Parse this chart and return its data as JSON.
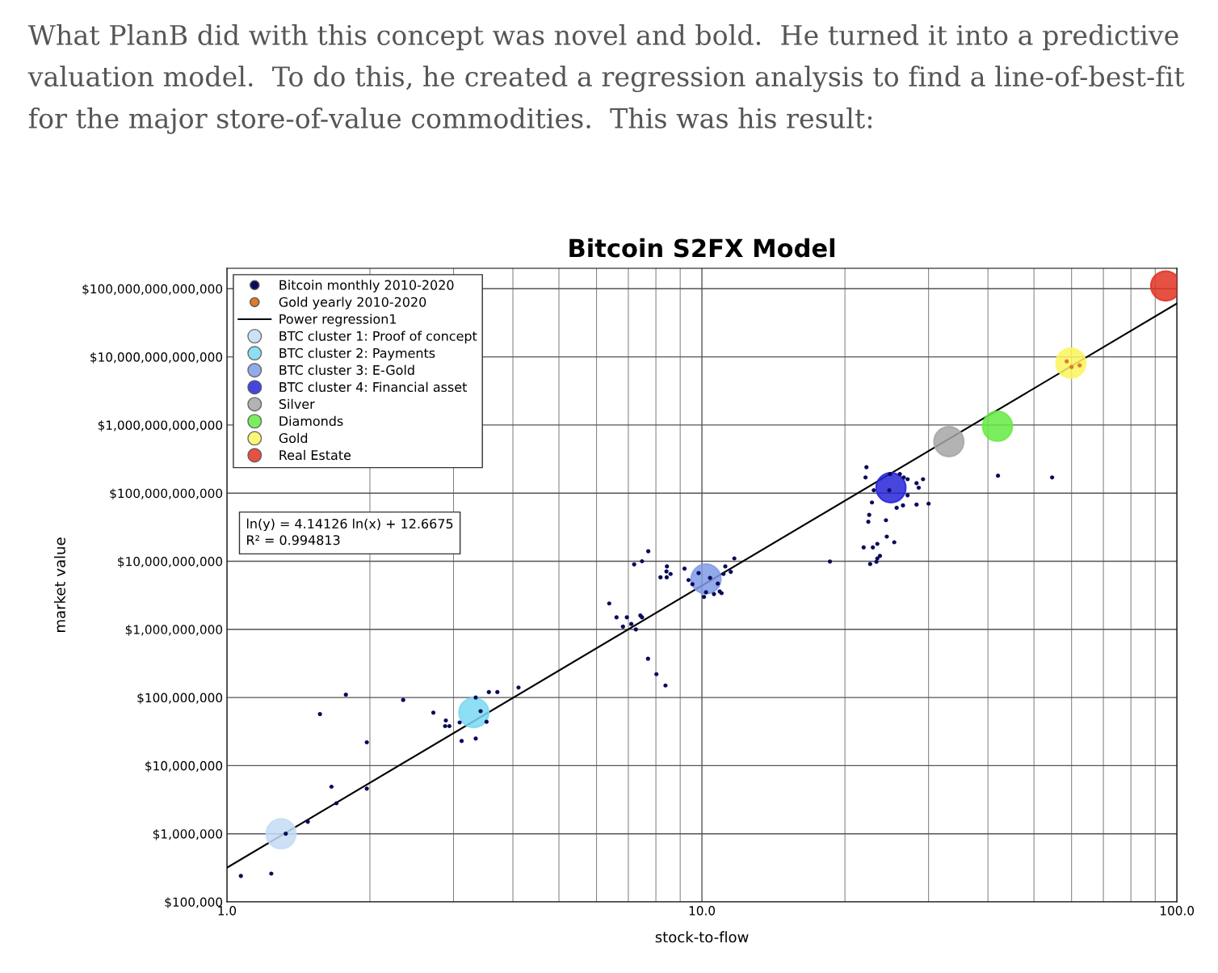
{
  "chart_data": {
    "type": "scatter",
    "title": "Bitcoin S2FX Model",
    "subtitle": "What PlanB did with this concept was novel and bold.  He turned it into a predictive valuation model.  To do this, he created a regression analysis to find a line-of-best-fit for the major store-of-value commodities.  This was his result:",
    "xlabel": "stock-to-flow",
    "ylabel": "market value",
    "annotations": [
      "ln(y) = 4.14126 ln(x) + 12.6675\nR² = 0.994813"
    ],
    "log": "xy",
    "grid": true,
    "legend": "top left",
    "marker": "circle",
    "xlim": [
      1,
      100
    ],
    "xticks": [
      {
        "value": 1,
        "label": "1.0"
      },
      {
        "value": 10,
        "label": "10.0"
      },
      {
        "value": 100,
        "label": "100.0"
      }
    ],
    "ylim": [
      100000.0,
      200000000000000.0
    ],
    "yticks": [
      {
        "value": 100000.0,
        "label": "$100,000"
      },
      {
        "value": 1000000.0,
        "label": "$1,000,000"
      },
      {
        "value": 10000000.0,
        "label": "$10,000,000"
      },
      {
        "value": 100000000.0,
        "label": "$100,000,000"
      },
      {
        "value": 1000000000.0,
        "label": "$1,000,000,000"
      },
      {
        "value": 10000000000.0,
        "label": "$10,000,000,000"
      },
      {
        "value": 100000000000.0,
        "label": "$100,000,000,000"
      },
      {
        "value": 1000000000000.0,
        "label": "$1,000,000,000,000"
      },
      {
        "value": 10000000000000.0,
        "label": "$10,000,000,000,000"
      },
      {
        "value": 100000000000000.0,
        "label": "$100,000,000,000,000"
      }
    ],
    "series": [
      {
        "name": "Bitcoin monthly 2010-2020",
        "color": "#0b0b5c",
        "x": [
          1.07,
          1.24,
          1.33,
          1.48,
          1.7,
          1.66,
          1.97,
          1.97,
          1.57,
          1.78,
          2.35,
          2.72,
          2.89,
          2.88,
          2.94,
          3.09,
          3.12,
          3.34,
          3.34,
          3.42,
          3.52,
          3.56,
          3.71,
          4.11,
          6.38,
          6.61,
          6.95,
          6.82,
          7.1,
          7.26,
          7.42,
          7.48,
          7.7,
          8.02,
          8.38,
          7.2,
          7.48,
          7.71,
          8.44,
          8.42,
          8.59,
          8.18,
          8.43,
          9.19,
          9.37,
          9.55,
          9.84,
          10.1,
          10.2,
          10.4,
          10.6,
          10.9,
          11.0,
          10.8,
          11.1,
          11.2,
          11.5,
          11.7,
          22.2,
          22.1,
          23.0,
          22.8,
          22.5,
          22.4,
          24.4,
          24.5,
          25.4,
          21.9,
          22.9,
          23.4,
          23.7,
          23.4,
          23.3,
          22.6,
          18.6,
          24.9,
          26.1,
          26.6,
          27.1,
          28.3,
          29.2,
          28.6,
          27.1,
          26.5,
          25.7,
          28.3,
          30.0,
          24.8,
          42.0,
          54.6
        ],
        "values": [
          240000.0,
          260000.0,
          1000000.0,
          1500000.0,
          2800000.0,
          4900000.0,
          4600000.0,
          22000000.0,
          57000000.0,
          110000000.0,
          92000000.0,
          60000000.0,
          46000000.0,
          38000000.0,
          38000000.0,
          43000000.0,
          23000000.0,
          25000000.0,
          100000000.0,
          63000000.0,
          44000000.0,
          120000000.0,
          120000000.0,
          140000000.0,
          2400000000.0,
          1500000000.0,
          1500000000.0,
          1100000000.0,
          1200000000.0,
          1000000000.0,
          1600000000.0,
          1500000000.0,
          370000000.0,
          220000000.0,
          150000000.0,
          9000000000.0,
          10000000000.0,
          14000000000.0,
          8400000000.0,
          7100000000.0,
          6500000000.0,
          5800000000.0,
          5800000000.0,
          7800000000.0,
          5300000000.0,
          4600000000.0,
          6700000000.0,
          3000000000.0,
          3500000000.0,
          5700000000.0,
          3300000000.0,
          3600000000.0,
          3400000000.0,
          4700000000.0,
          6500000000.0,
          8400000000.0,
          7000000000.0,
          11000000000.0,
          240000000000.0,
          170000000000.0,
          110000000000.0,
          73000000000.0,
          48000000000.0,
          38000000000.0,
          40000000000.0,
          23000000000.0,
          19000000000.0,
          16000000000.0,
          16000000000.0,
          18000000000.0,
          12000000000.0,
          11000000000.0,
          9800000000.0,
          9100000000.0,
          9900000000.0,
          190000000000.0,
          190000000000.0,
          170000000000.0,
          160000000000.0,
          140000000000.0,
          160000000000.0,
          120000000000.0,
          93000000000.0,
          66000000000.0,
          61000000000.0,
          68000000000.0,
          70000000000.0,
          110000000000.0,
          180000000000.0,
          170000000000.0
        ]
      },
      {
        "name": "Gold yearly 2010-2020",
        "color": "#e07a2a",
        "x": [
          58.6,
          62.4,
          60.0
        ],
        "values": [
          8600000000000.0,
          7500000000000.0,
          7100000000000.0
        ]
      },
      {
        "name": "Power regression1",
        "type": "line",
        "marker": "none",
        "color": "#000000",
        "x": [
          1,
          100
        ],
        "values": [
          317000.0,
          60800000000000.0
        ]
      },
      {
        "name": "BTC cluster 1: Proof of concept",
        "type": "bubble",
        "color": "#c4dcf4",
        "x": [
          1.3
        ],
        "values": [
          1000000.0
        ],
        "sizes": [
          1
        ]
      },
      {
        "name": "BTC cluster 2: Payments",
        "type": "bubble",
        "color": "#7ad8f2",
        "x": [
          3.31
        ],
        "values": [
          60000000.0
        ],
        "sizes": [
          1
        ]
      },
      {
        "name": "BTC cluster 3: E-Gold",
        "type": "bubble",
        "color": "#7f9be6",
        "x": [
          10.2
        ],
        "values": [
          5500000000.0
        ],
        "sizes": [
          1
        ]
      },
      {
        "name": "BTC cluster 4: Financial asset",
        "type": "bubble",
        "color": "#2626d8",
        "x": [
          25.0
        ],
        "values": [
          120000000000.0
        ],
        "sizes": [
          1
        ]
      },
      {
        "name": "Silver",
        "type": "bubble",
        "color": "#a6a6a6",
        "x": [
          33.1
        ],
        "values": [
          570000000000.0
        ],
        "sizes": [
          1
        ]
      },
      {
        "name": "Diamonds",
        "type": "bubble",
        "color": "#66ea44",
        "x": [
          41.9
        ],
        "values": [
          960000000000.0
        ],
        "sizes": [
          1
        ]
      },
      {
        "name": "Gold",
        "type": "bubble",
        "color": "#fbf55e",
        "x": [
          59.8
        ],
        "values": [
          8100000000000.0
        ],
        "sizes": [
          1
        ]
      },
      {
        "name": "Real Estate",
        "type": "bubble",
        "color": "#e03322",
        "x": [
          94.7
        ],
        "values": [
          110000000000000.0
        ],
        "sizes": [
          1
        ]
      }
    ]
  }
}
